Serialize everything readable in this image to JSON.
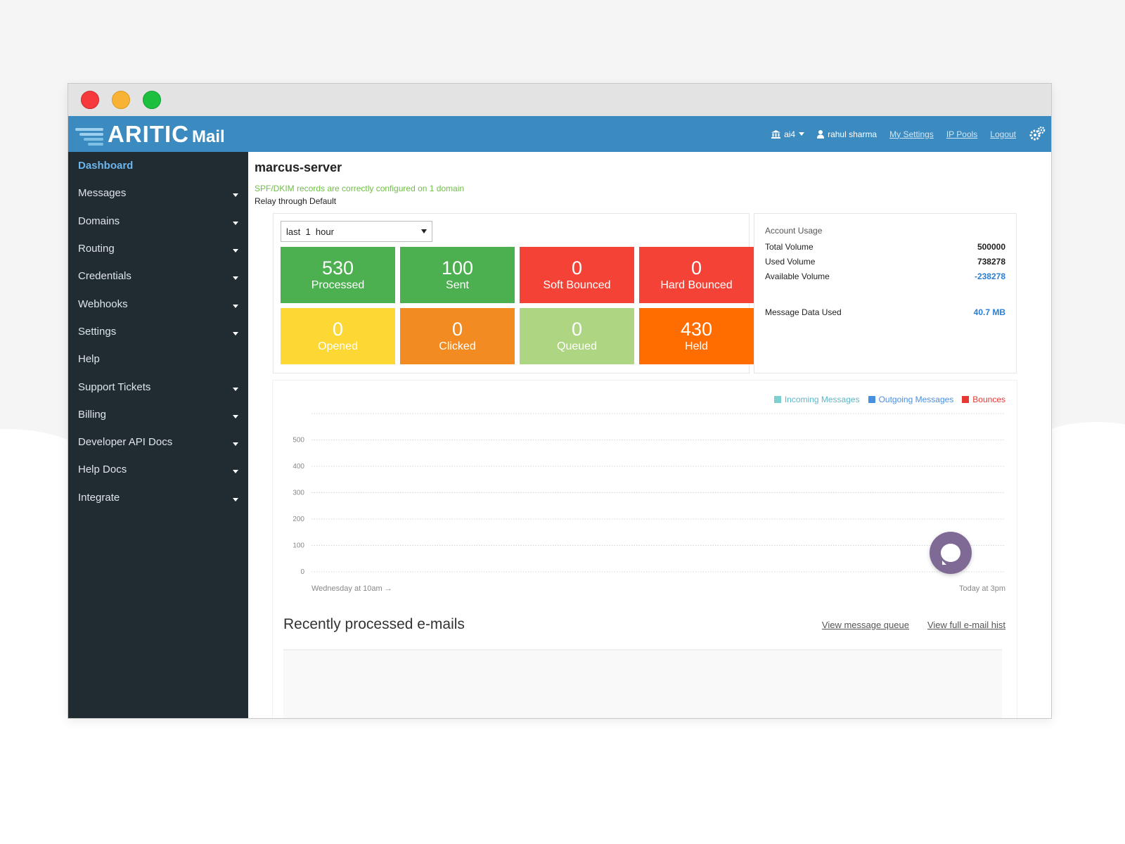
{
  "brand": {
    "name": "ARITIC",
    "suffix": "Mail"
  },
  "colors": {
    "header": "#3b8bc0",
    "sidebar": "#212b32",
    "accent": "#6cb5ec"
  },
  "sidebar": {
    "items": [
      {
        "label": "Dashboard",
        "active": true,
        "has_caret": false
      },
      {
        "label": "Messages",
        "has_caret": true
      },
      {
        "label": "Domains",
        "has_caret": true
      },
      {
        "label": "Routing",
        "has_caret": true
      },
      {
        "label": "Credentials",
        "has_caret": true
      },
      {
        "label": "Webhooks",
        "has_caret": true
      },
      {
        "label": "Settings",
        "has_caret": true
      },
      {
        "label": "Help",
        "has_caret": false
      },
      {
        "label": "Support Tickets",
        "has_caret": true
      },
      {
        "label": "Billing",
        "has_caret": true
      },
      {
        "label": "Developer API Docs",
        "has_caret": true
      },
      {
        "label": "Help Docs",
        "has_caret": true
      },
      {
        "label": "Integrate",
        "has_caret": true
      }
    ]
  },
  "topbar": {
    "org": "ai4",
    "user": "rahul sharma",
    "my_settings": "My Settings",
    "ip_pools": "IP Pools",
    "logout": "Logout"
  },
  "server": {
    "title": "marcus-server",
    "spf_status": "SPF/DKIM records are correctly configured on 1 domain",
    "relay": "Relay through Default"
  },
  "time_range": {
    "selected": "last  1  hour"
  },
  "stats": [
    {
      "value": "530",
      "label": "Processed",
      "color": "#4caf50"
    },
    {
      "value": "100",
      "label": "Sent",
      "color": "#4caf50"
    },
    {
      "value": "0",
      "label": "Soft Bounced",
      "color": "#f44336"
    },
    {
      "value": "0",
      "label": "Hard Bounced",
      "color": "#f44336"
    },
    {
      "value": "0",
      "label": "Opened",
      "color": "#fdd835"
    },
    {
      "value": "0",
      "label": "Clicked",
      "color": "#f28b21"
    },
    {
      "value": "0",
      "label": "Queued",
      "color": "#aed581"
    },
    {
      "value": "430",
      "label": "Held",
      "color": "#ff6d00"
    }
  ],
  "account_usage": {
    "title": "Account Usage",
    "total_volume_label": "Total Volume",
    "total_volume": "500000",
    "used_volume_label": "Used Volume",
    "used_volume": "738278",
    "available_volume_label": "Available Volume",
    "available_volume": "-238278",
    "message_data_label": "Message Data Used",
    "message_data": "40.7 MB"
  },
  "chart_data": {
    "type": "line",
    "y_ticks": [
      "500",
      "400",
      "300",
      "200",
      "100",
      "0"
    ],
    "ylim": [
      0,
      500
    ],
    "x_start_label": "Wednesday at 10am →",
    "x_end_label": "Today at 3pm",
    "legend_position": "top-right",
    "series": [
      {
        "name": "Incoming Messages",
        "color": "#7fd1d1",
        "values": []
      },
      {
        "name": "Outgoing Messages",
        "color": "#4a90e2",
        "values": []
      },
      {
        "name": "Bounces",
        "color": "#e53935",
        "values": []
      }
    ]
  },
  "recent": {
    "title": "Recently processed e-mails",
    "view_queue": "View message queue",
    "view_history": "View full e-mail hist"
  }
}
